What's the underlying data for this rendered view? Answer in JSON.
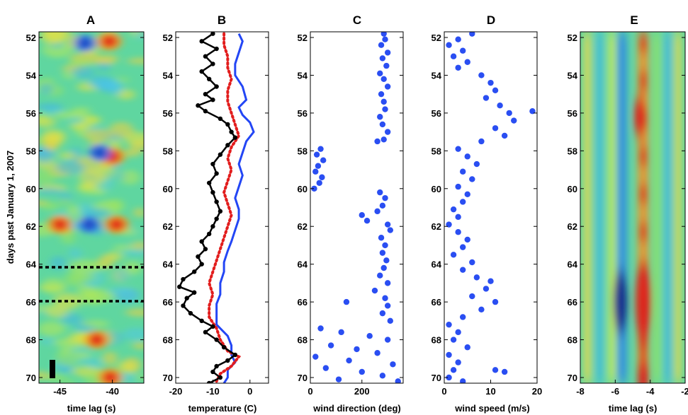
{
  "figure": {
    "shared_ylabel": "days past January 1, 2007",
    "y_ticks": [
      "52",
      "54",
      "56",
      "58",
      "60",
      "62",
      "64",
      "66",
      "68",
      "70"
    ]
  },
  "chart_data": [
    {
      "panel": "A",
      "type": "heatmap",
      "title": "A",
      "xlabel": "time lag (s)",
      "ylabel": "days past January 1, 2007",
      "xlim": [
        -47,
        -37
      ],
      "ylim": [
        51.7,
        70.3
      ],
      "y_reversed": true,
      "x_ticks": [
        -45,
        -40
      ],
      "colormap": "jet",
      "annotations": {
        "dashed_lines_at_day": [
          64,
          65.8
        ],
        "scale_bar": "black vertical bar, lower left"
      },
      "features": [
        {
          "day": 52.2,
          "lag": -40.3,
          "sign": "positive"
        },
        {
          "day": 52.3,
          "lag": -42.6,
          "sign": "negative"
        },
        {
          "day": 58.3,
          "lag": -40.0,
          "sign": "positive"
        },
        {
          "day": 58.1,
          "lag": -41.2,
          "sign": "negative"
        },
        {
          "day": 61.9,
          "lag": -42.2,
          "sign": "negative"
        },
        {
          "day": 61.9,
          "lag": -39.6,
          "sign": "positive"
        },
        {
          "day": 61.9,
          "lag": -45.0,
          "sign": "positive"
        },
        {
          "day": 68.0,
          "lag": -41.5,
          "sign": "positive"
        },
        {
          "day": 70.0,
          "lag": -40.2,
          "sign": "positive"
        }
      ]
    },
    {
      "panel": "B",
      "type": "line",
      "title": "B",
      "xlabel": "temperature (C)",
      "xlim": [
        -20,
        5
      ],
      "ylim": [
        51.7,
        70.3
      ],
      "y_reversed": true,
      "x_ticks": [
        -20,
        -10,
        0
      ],
      "series": [
        {
          "style": "blue solid",
          "points": [
            [
              -3,
              51.8
            ],
            [
              -2,
              52.2
            ],
            [
              -3,
              52.8
            ],
            [
              -4,
              53.4
            ],
            [
              -4,
              54.0
            ],
            [
              -2,
              54.6
            ],
            [
              -1,
              55.3
            ],
            [
              -3,
              55.7
            ],
            [
              -2,
              56.1
            ],
            [
              0,
              56.5
            ],
            [
              1,
              57.0
            ],
            [
              -1,
              57.5
            ],
            [
              -2,
              58.1
            ],
            [
              -3,
              58.7
            ],
            [
              -2,
              59.3
            ],
            [
              -3,
              59.9
            ],
            [
              -4,
              60.5
            ],
            [
              -3,
              61.1
            ],
            [
              -3,
              61.6
            ],
            [
              -4,
              62.2
            ],
            [
              -5,
              62.8
            ],
            [
              -6,
              63.3
            ],
            [
              -7,
              63.9
            ],
            [
              -7,
              64.4
            ],
            [
              -8,
              65.0
            ],
            [
              -8,
              65.6
            ],
            [
              -9,
              66.1
            ],
            [
              -9,
              66.7
            ],
            [
              -9,
              67.2
            ],
            [
              -6,
              67.8
            ],
            [
              -5,
              68.3
            ],
            [
              -5,
              68.8
            ],
            [
              -4,
              69.2
            ],
            [
              -6,
              69.6
            ],
            [
              -6,
              70.0
            ],
            [
              -7,
              70.3
            ]
          ]
        },
        {
          "style": "red dotted",
          "points": [
            [
              -7,
              51.8
            ],
            [
              -7,
              52.4
            ],
            [
              -6,
              53.0
            ],
            [
              -6,
              53.6
            ],
            [
              -5,
              54.2
            ],
            [
              -6,
              54.8
            ],
            [
              -6,
              55.4
            ],
            [
              -5,
              56.0
            ],
            [
              -4,
              56.6
            ],
            [
              -3,
              57.2
            ],
            [
              -5,
              57.8
            ],
            [
              -6,
              58.4
            ],
            [
              -5,
              59.0
            ],
            [
              -6,
              59.6
            ],
            [
              -7,
              60.2
            ],
            [
              -6,
              60.8
            ],
            [
              -5,
              61.4
            ],
            [
              -6,
              62.0
            ],
            [
              -7,
              62.6
            ],
            [
              -8,
              63.2
            ],
            [
              -9,
              63.8
            ],
            [
              -10,
              64.4
            ],
            [
              -11,
              65.0
            ],
            [
              -10,
              65.6
            ],
            [
              -11,
              66.2
            ],
            [
              -11,
              66.8
            ],
            [
              -9,
              67.4
            ],
            [
              -8,
              68.0
            ],
            [
              -6,
              68.6
            ],
            [
              -3,
              68.9
            ],
            [
              -5,
              69.4
            ],
            [
              -8,
              69.8
            ],
            [
              -9,
              70.2
            ]
          ]
        },
        {
          "style": "black solid with markers",
          "points": [
            [
              -10,
              51.8
            ],
            [
              -13,
              52.2
            ],
            [
              -9,
              52.6
            ],
            [
              -12,
              53.0
            ],
            [
              -10,
              53.4
            ],
            [
              -13,
              53.8
            ],
            [
              -11,
              54.2
            ],
            [
              -9,
              54.6
            ],
            [
              -12,
              55.0
            ],
            [
              -10,
              55.3
            ],
            [
              -14,
              55.6
            ],
            [
              -12,
              55.9
            ],
            [
              -8,
              56.3
            ],
            [
              -6,
              56.6
            ],
            [
              -5,
              57.0
            ],
            [
              -4,
              57.3
            ],
            [
              -6,
              57.7
            ],
            [
              -8,
              58.2
            ],
            [
              -10,
              58.7
            ],
            [
              -9,
              59.2
            ],
            [
              -11,
              59.7
            ],
            [
              -10,
              60.2
            ],
            [
              -9,
              60.7
            ],
            [
              -8,
              61.2
            ],
            [
              -9,
              61.6
            ],
            [
              -10,
              62.0
            ],
            [
              -11,
              62.4
            ],
            [
              -13,
              62.8
            ],
            [
              -12,
              63.2
            ],
            [
              -14,
              63.6
            ],
            [
              -13,
              64.0
            ],
            [
              -15,
              64.4
            ],
            [
              -18,
              64.8
            ],
            [
              -19,
              65.2
            ],
            [
              -15,
              65.5
            ],
            [
              -17,
              65.8
            ],
            [
              -18,
              66.2
            ],
            [
              -16,
              66.6
            ],
            [
              -13,
              67.0
            ],
            [
              -10,
              67.3
            ],
            [
              -12,
              67.6
            ],
            [
              -9,
              68.0
            ],
            [
              -7,
              68.4
            ],
            [
              -4,
              68.8
            ],
            [
              -6,
              69.1
            ],
            [
              -9,
              69.4
            ],
            [
              -10,
              69.7
            ],
            [
              -8,
              70.0
            ],
            [
              -11,
              70.3
            ]
          ]
        }
      ]
    },
    {
      "panel": "C",
      "type": "scatter",
      "title": "C",
      "xlabel": "wind direction (deg)",
      "xlim": [
        0,
        360
      ],
      "ylim": [
        51.7,
        70.3
      ],
      "y_reversed": true,
      "x_ticks": [
        0,
        200
      ],
      "series": [
        {
          "style": "blue dots",
          "points": [
            [
              285,
              51.8
            ],
            [
              290,
              52.1
            ],
            [
              275,
              52.4
            ],
            [
              300,
              52.8
            ],
            [
              280,
              53.1
            ],
            [
              295,
              53.5
            ],
            [
              270,
              53.9
            ],
            [
              285,
              54.2
            ],
            [
              300,
              54.6
            ],
            [
              275,
              55.0
            ],
            [
              285,
              55.4
            ],
            [
              290,
              55.8
            ],
            [
              270,
              56.2
            ],
            [
              280,
              56.6
            ],
            [
              300,
              57.0
            ],
            [
              285,
              57.4
            ],
            [
              260,
              57.5
            ],
            [
              40,
              57.9
            ],
            [
              25,
              58.2
            ],
            [
              50,
              58.5
            ],
            [
              30,
              58.8
            ],
            [
              20,
              59.1
            ],
            [
              45,
              59.4
            ],
            [
              35,
              59.7
            ],
            [
              15,
              60.0
            ],
            [
              270,
              60.2
            ],
            [
              290,
              60.5
            ],
            [
              280,
              60.9
            ],
            [
              260,
              61.2
            ],
            [
              200,
              61.4
            ],
            [
              220,
              61.7
            ],
            [
              300,
              61.9
            ],
            [
              310,
              62.2
            ],
            [
              275,
              62.6
            ],
            [
              290,
              63.0
            ],
            [
              280,
              63.4
            ],
            [
              295,
              63.8
            ],
            [
              285,
              64.2
            ],
            [
              270,
              64.6
            ],
            [
              300,
              65.0
            ],
            [
              250,
              65.4
            ],
            [
              290,
              65.8
            ],
            [
              140,
              66.0
            ],
            [
              300,
              66.2
            ],
            [
              280,
              66.6
            ],
            [
              310,
              67.0
            ],
            [
              40,
              67.4
            ],
            [
              120,
              67.6
            ],
            [
              230,
              67.8
            ],
            [
              300,
              68.0
            ],
            [
              80,
              68.3
            ],
            [
              180,
              68.5
            ],
            [
              260,
              68.7
            ],
            [
              20,
              68.9
            ],
            [
              150,
              69.1
            ],
            [
              320,
              69.3
            ],
            [
              60,
              69.5
            ],
            [
              200,
              69.7
            ],
            [
              280,
              69.9
            ],
            [
              110,
              70.1
            ],
            [
              340,
              70.2
            ]
          ]
        }
      ]
    },
    {
      "panel": "D",
      "type": "scatter",
      "title": "D",
      "xlabel": "wind speed (m/s)",
      "xlim": [
        0,
        20
      ],
      "ylim": [
        51.7,
        70.3
      ],
      "y_reversed": true,
      "x_ticks": [
        0,
        10,
        20
      ],
      "series": [
        {
          "style": "blue dots",
          "points": [
            [
              6,
              51.8
            ],
            [
              3,
              52.1
            ],
            [
              1,
              52.4
            ],
            [
              4,
              52.7
            ],
            [
              2,
              53.0
            ],
            [
              5,
              53.3
            ],
            [
              3,
              53.6
            ],
            [
              8,
              54.0
            ],
            [
              10,
              54.4
            ],
            [
              11,
              54.8
            ],
            [
              9,
              55.2
            ],
            [
              12,
              55.6
            ],
            [
              14,
              56.0
            ],
            [
              19,
              55.9
            ],
            [
              15,
              56.4
            ],
            [
              11,
              56.8
            ],
            [
              13,
              57.2
            ],
            [
              8,
              57.5
            ],
            [
              3,
              57.9
            ],
            [
              5,
              58.3
            ],
            [
              7,
              58.7
            ],
            [
              4,
              59.1
            ],
            [
              6,
              59.5
            ],
            [
              3,
              59.9
            ],
            [
              5,
              60.3
            ],
            [
              4,
              60.7
            ],
            [
              2,
              61.1
            ],
            [
              3,
              61.5
            ],
            [
              1,
              61.9
            ],
            [
              3,
              62.3
            ],
            [
              5,
              62.7
            ],
            [
              4,
              63.1
            ],
            [
              2,
              63.5
            ],
            [
              6,
              63.9
            ],
            [
              4,
              64.3
            ],
            [
              7,
              64.7
            ],
            [
              10,
              64.9
            ],
            [
              9,
              65.3
            ],
            [
              6,
              65.7
            ],
            [
              11,
              66.0
            ],
            [
              8,
              66.4
            ],
            [
              4,
              66.8
            ],
            [
              1,
              67.2
            ],
            [
              3,
              67.6
            ],
            [
              2,
              68.0
            ],
            [
              5,
              68.4
            ],
            [
              1,
              68.8
            ],
            [
              3,
              69.2
            ],
            [
              2,
              69.6
            ],
            [
              11,
              69.6
            ],
            [
              13,
              69.7
            ],
            [
              1,
              70.0
            ],
            [
              4,
              70.2
            ]
          ]
        }
      ]
    },
    {
      "panel": "E",
      "type": "heatmap",
      "title": "E",
      "xlabel": "time lag (s)",
      "xlim": [
        -8,
        -2
      ],
      "ylim": [
        51.7,
        70.3
      ],
      "y_reversed": true,
      "x_ticks": [
        -8,
        -6,
        -4,
        -2
      ],
      "colormap": "jet",
      "features": [
        {
          "lag": -5.6,
          "sign": "negative",
          "note": "persistent negative band"
        },
        {
          "lag": -4.4,
          "sign": "positive",
          "note": "persistent positive band"
        },
        {
          "day": 66.0,
          "lag": -5.7,
          "sign": "negative",
          "strength": "strong"
        },
        {
          "day": 66.0,
          "lag": -4.4,
          "sign": "positive",
          "strength": "strong"
        },
        {
          "day": 56.2,
          "lag": -4.6,
          "sign": "positive"
        },
        {
          "day": 70.0,
          "lag": -4.4,
          "sign": "positive"
        }
      ]
    }
  ]
}
